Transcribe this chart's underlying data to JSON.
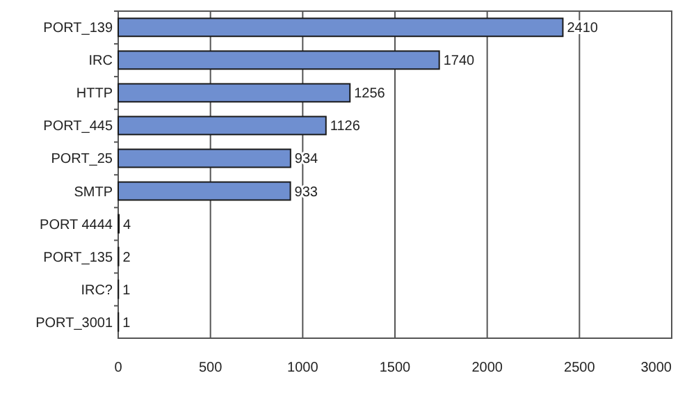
{
  "chart_data": {
    "type": "bar",
    "orientation": "horizontal",
    "categories": [
      "PORT_139",
      "IRC",
      "HTTP",
      "PORT_445",
      "PORT_25",
      "SMTP",
      "PORT 4444",
      "PORT_135",
      "IRC?",
      "PORT_3001"
    ],
    "values": [
      2410,
      1740,
      1256,
      1126,
      934,
      933,
      4,
      2,
      1,
      1
    ],
    "color": "#6f8fd0",
    "data_labels": true,
    "xlim": [
      0,
      3000
    ],
    "xticks": [
      0,
      500,
      1000,
      1500,
      2000,
      2500,
      3000
    ],
    "grid": "x"
  }
}
